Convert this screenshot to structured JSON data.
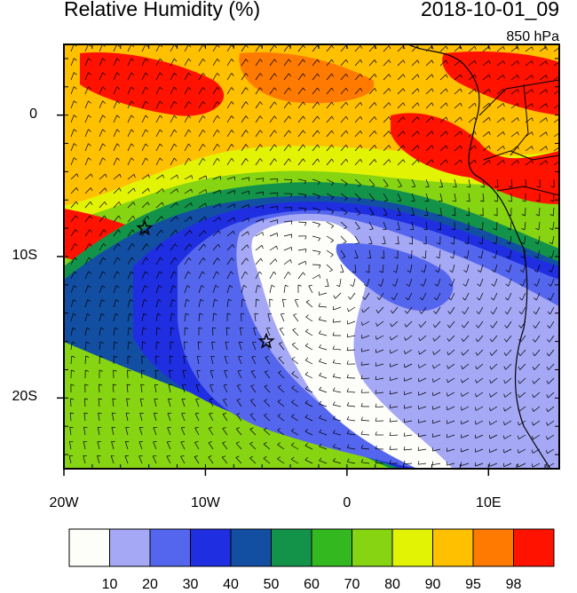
{
  "header": {
    "title": "Relative Humidity (%)",
    "datetime": "2018-10-01_09",
    "level": "850 hPa"
  },
  "map": {
    "variable": "relative humidity",
    "units": "%",
    "lon_range": [
      -20,
      15
    ],
    "lat_range": [
      -25,
      5
    ],
    "x_ticks": [
      "20W",
      "10W",
      "0",
      "10E"
    ],
    "y_ticks": [
      "0",
      "10S",
      "20S"
    ],
    "markers": [
      {
        "name": "star-marker-north",
        "lon": -14.3,
        "lat": -8.0
      },
      {
        "name": "star-marker-south",
        "lon": -5.7,
        "lat": -16.0
      }
    ],
    "wind_barbs": true
  },
  "colorbar": {
    "labels": [
      "10",
      "20",
      "30",
      "40",
      "50",
      "60",
      "70",
      "80",
      "90",
      "95",
      "98"
    ],
    "colors": [
      "#fdfdfa",
      "#a5a8f5",
      "#5566ee",
      "#1f2ee0",
      "#124fa3",
      "#13934a",
      "#34b820",
      "#86d412",
      "#e2f404",
      "#ffc000",
      "#ff7a00",
      "#ff1200"
    ]
  }
}
